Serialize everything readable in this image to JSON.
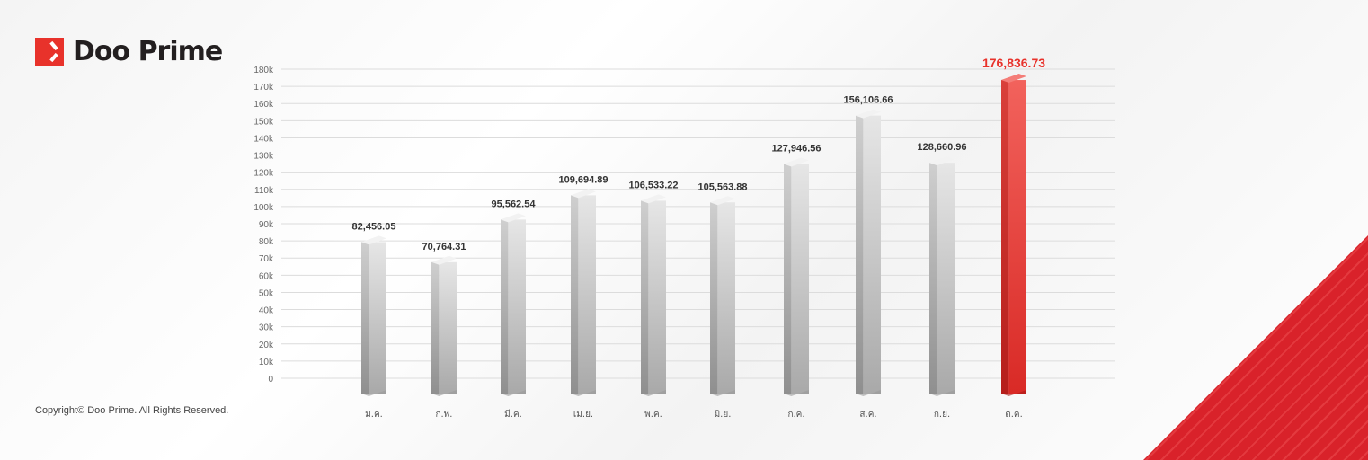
{
  "brand": {
    "name": "Doo Prime",
    "accent": "#e8322b"
  },
  "copyright": "Copyright© Doo Prime. All Rights Reserved.",
  "chart_data": {
    "type": "bar",
    "categories": [
      "ม.ค.",
      "ก.พ.",
      "มี.ค.",
      "เม.ย.",
      "พ.ค.",
      "มิ.ย.",
      "ก.ค.",
      "ส.ค.",
      "ก.ย.",
      "ต.ค."
    ],
    "values": [
      82456.05,
      70764.31,
      95562.54,
      109694.89,
      106533.22,
      105563.88,
      127946.56,
      156106.66,
      128660.96,
      176836.73
    ],
    "data_labels": [
      "82,456.05",
      "70,764.31",
      "95,562.54",
      "109,694.89",
      "106,533.22",
      "105,563.88",
      "127,946.56",
      "156,106.66",
      "128,660.96",
      "176,836.73"
    ],
    "highlight_index": 9,
    "highlight_color": "#e8322b",
    "bar_color": "#c8c8c8",
    "yticks": [
      "0",
      "10k",
      "20k",
      "30k",
      "40k",
      "50k",
      "60k",
      "70k",
      "80k",
      "90k",
      "100k",
      "110k",
      "120k",
      "130k",
      "140k",
      "150k",
      "160k",
      "170k",
      "180k"
    ],
    "ylim": [
      0,
      180000
    ],
    "grid": true,
    "title": "",
    "xlabel": "",
    "ylabel": ""
  }
}
